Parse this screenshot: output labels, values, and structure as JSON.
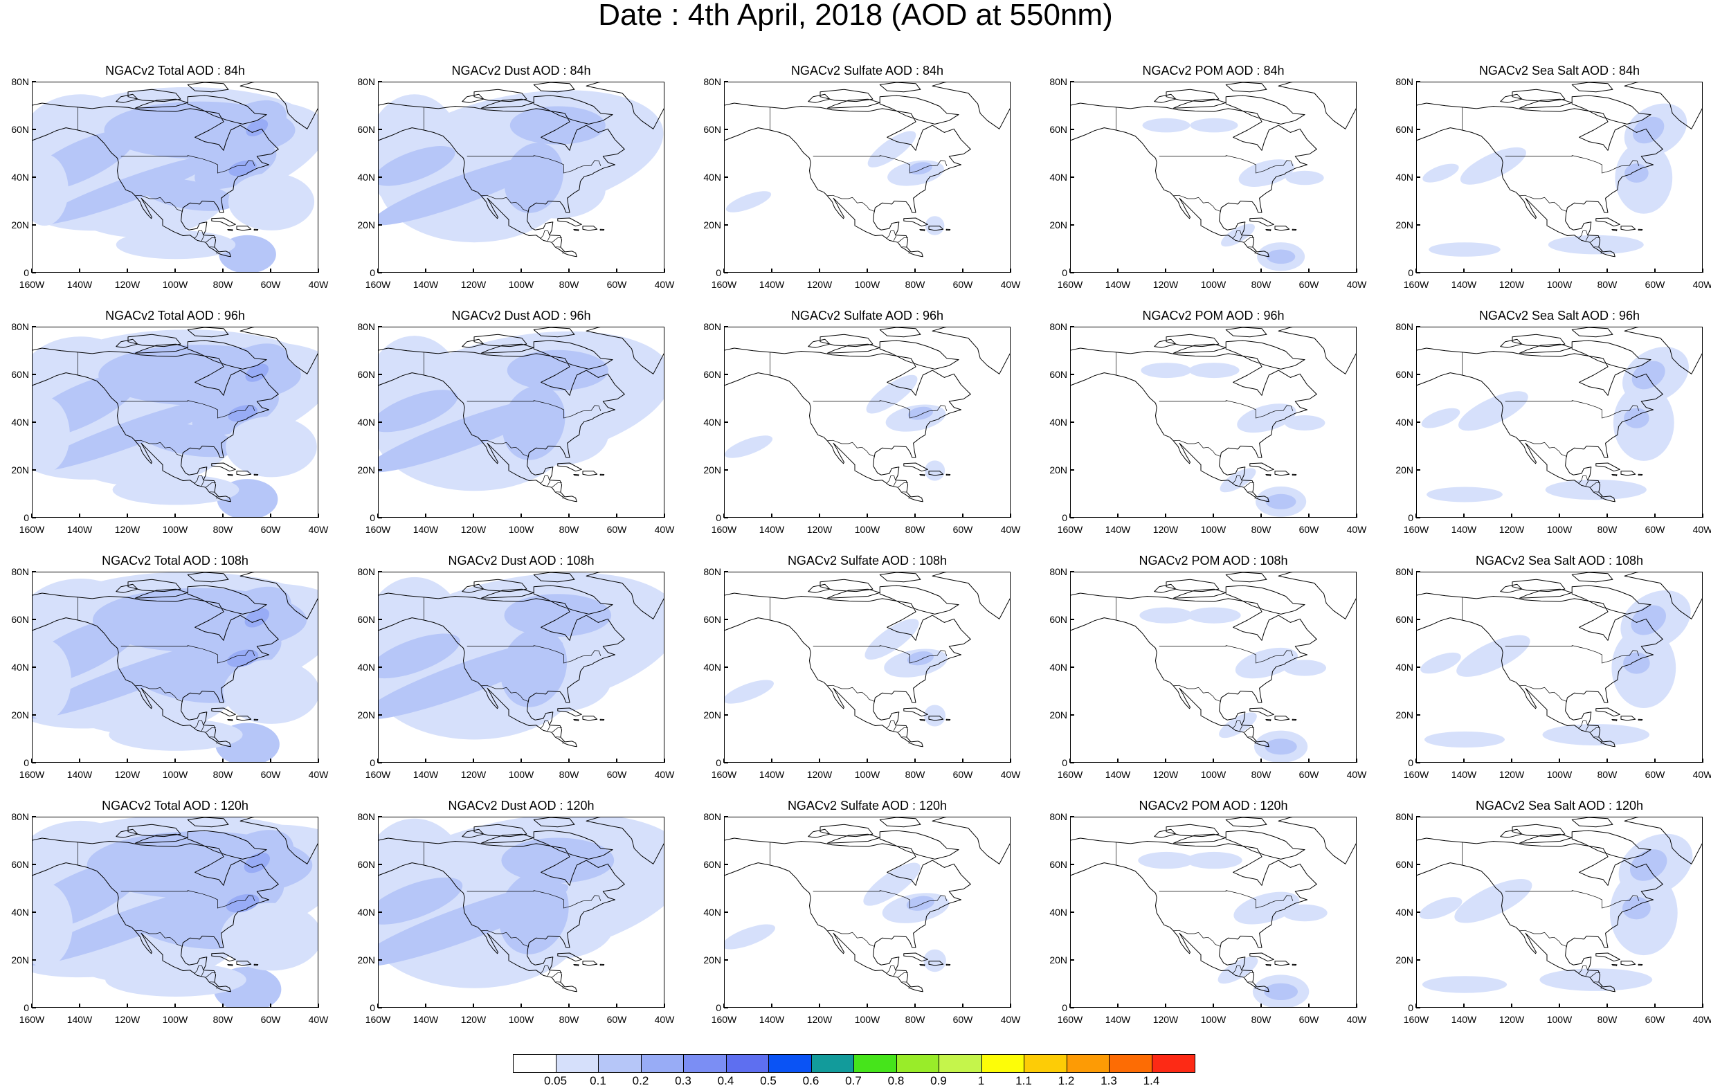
{
  "title": "Date : 4th April, 2018 (AOD at 550nm)",
  "panels": [
    {
      "title": "NGACv2 Total AOD : 84h",
      "species": "total",
      "hour": 84
    },
    {
      "title": "NGACv2 Dust AOD : 84h",
      "species": "dust",
      "hour": 84
    },
    {
      "title": "NGACv2 Sulfate AOD : 84h",
      "species": "sulfate",
      "hour": 84
    },
    {
      "title": "NGACv2 POM AOD : 84h",
      "species": "pom",
      "hour": 84
    },
    {
      "title": "NGACv2 Sea Salt AOD : 84h",
      "species": "seasalt",
      "hour": 84
    },
    {
      "title": "NGACv2 Total AOD : 96h",
      "species": "total",
      "hour": 96
    },
    {
      "title": "NGACv2 Dust AOD : 96h",
      "species": "dust",
      "hour": 96
    },
    {
      "title": "NGACv2 Sulfate AOD : 96h",
      "species": "sulfate",
      "hour": 96
    },
    {
      "title": "NGACv2 POM AOD : 96h",
      "species": "pom",
      "hour": 96
    },
    {
      "title": "NGACv2 Sea Salt AOD : 96h",
      "species": "seasalt",
      "hour": 96
    },
    {
      "title": "NGACv2 Total AOD : 108h",
      "species": "total",
      "hour": 108
    },
    {
      "title": "NGACv2 Dust AOD : 108h",
      "species": "dust",
      "hour": 108
    },
    {
      "title": "NGACv2 Sulfate AOD : 108h",
      "species": "sulfate",
      "hour": 108
    },
    {
      "title": "NGACv2 POM AOD : 108h",
      "species": "pom",
      "hour": 108
    },
    {
      "title": "NGACv2 Sea Salt AOD : 108h",
      "species": "seasalt",
      "hour": 108
    },
    {
      "title": "NGACv2 Total AOD : 120h",
      "species": "total",
      "hour": 120
    },
    {
      "title": "NGACv2 Dust AOD : 120h",
      "species": "dust",
      "hour": 120
    },
    {
      "title": "NGACv2 Sulfate AOD : 120h",
      "species": "sulfate",
      "hour": 120
    },
    {
      "title": "NGACv2 POM AOD : 120h",
      "species": "pom",
      "hour": 120
    },
    {
      "title": "NGACv2 Sea Salt  AOD : 120h",
      "species": "seasalt",
      "hour": 120
    }
  ],
  "axes": {
    "lat_ticks": [
      "0",
      "20N",
      "40N",
      "60N",
      "80N"
    ],
    "lon_ticks": [
      "160W",
      "140W",
      "120W",
      "100W",
      "80W",
      "60W",
      "40W"
    ],
    "lon_range": [
      -160,
      -40
    ],
    "lat_range": [
      0,
      80
    ]
  },
  "colorbar": {
    "colors": [
      "#ffffff",
      "#d6e0fb",
      "#b6c6f8",
      "#98acf6",
      "#7b8ef4",
      "#5e6ff0",
      "#0a53f5",
      "#129b9b",
      "#46e41b",
      "#99ec29",
      "#c5f54b",
      "#fdfd08",
      "#fdcc06",
      "#fd9b05",
      "#fd6c04",
      "#fd2a15"
    ],
    "labels": [
      "0.05",
      "0.1",
      "0.2",
      "0.3",
      "0.4",
      "0.5",
      "0.6",
      "0.7",
      "0.8",
      "0.9",
      "1",
      "1.1",
      "1.2",
      "1.3",
      "1.4"
    ]
  }
}
